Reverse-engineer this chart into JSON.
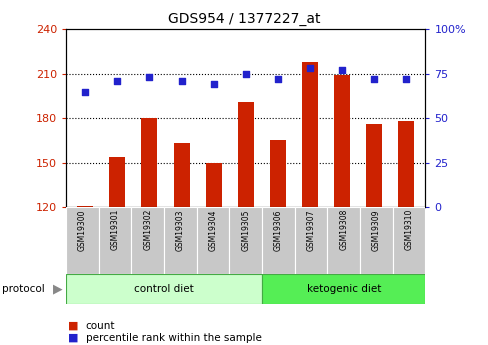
{
  "title": "GDS954 / 1377227_at",
  "samples": [
    "GSM19300",
    "GSM19301",
    "GSM19302",
    "GSM19303",
    "GSM19304",
    "GSM19305",
    "GSM19306",
    "GSM19307",
    "GSM19308",
    "GSM19309",
    "GSM19310"
  ],
  "counts": [
    121,
    154,
    180,
    163,
    150,
    191,
    165,
    218,
    209,
    176,
    178
  ],
  "percentile_ranks": [
    65,
    71,
    73,
    71,
    69,
    75,
    72,
    78,
    77,
    72,
    72
  ],
  "ylim_left": [
    120,
    240
  ],
  "ylim_right": [
    0,
    100
  ],
  "yticks_left": [
    120,
    150,
    180,
    210,
    240
  ],
  "yticks_right": [
    0,
    25,
    50,
    75,
    100
  ],
  "bar_color": "#CC2200",
  "dot_color": "#2222CC",
  "control_diet_indices": [
    0,
    1,
    2,
    3,
    4,
    5
  ],
  "ketogenic_diet_indices": [
    6,
    7,
    8,
    9,
    10
  ],
  "control_label": "control diet",
  "ketogenic_label": "ketogenic diet",
  "protocol_label": "protocol",
  "legend_count": "count",
  "legend_percentile": "percentile rank within the sample",
  "bg_plot": "#FFFFFF",
  "bg_sample_row": "#C8C8C8",
  "bg_control": "#CCFFCC",
  "bg_ketogenic": "#55EE55",
  "tick_color_left": "#CC2200",
  "tick_color_right": "#2222CC",
  "grid_dotted_at": [
    150,
    180,
    210
  ],
  "figsize": [
    4.89,
    3.45
  ],
  "dpi": 100
}
